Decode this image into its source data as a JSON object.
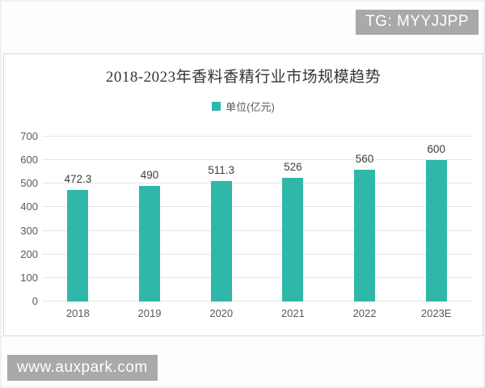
{
  "watermarks": {
    "top_right": "TG: MYYJJPP",
    "bottom_left": "www.auxpark.com"
  },
  "colors": {
    "bar": "#2fb7aa",
    "watermark_bg": "#a9a9a9",
    "title_text": "#363636",
    "axis_text": "#595959",
    "gridline": "#e5e5e5"
  },
  "chart_data": {
    "type": "bar",
    "title": "2018-2023年香料香精行业市场规模趋势",
    "legend": [
      "单位(亿元)"
    ],
    "legend_position": "top",
    "categories": [
      "2018",
      "2019",
      "2020",
      "2021",
      "2022",
      "2023E"
    ],
    "values": [
      472.3,
      490,
      511.3,
      526,
      560,
      600
    ],
    "value_labels": [
      "472.3",
      "490",
      "511.3",
      "526",
      "560",
      "600"
    ],
    "ylabel": "",
    "xlabel": "",
    "ylim": [
      0,
      700
    ],
    "yticks": [
      0,
      100,
      200,
      300,
      400,
      500,
      600,
      700
    ],
    "grid": true
  }
}
